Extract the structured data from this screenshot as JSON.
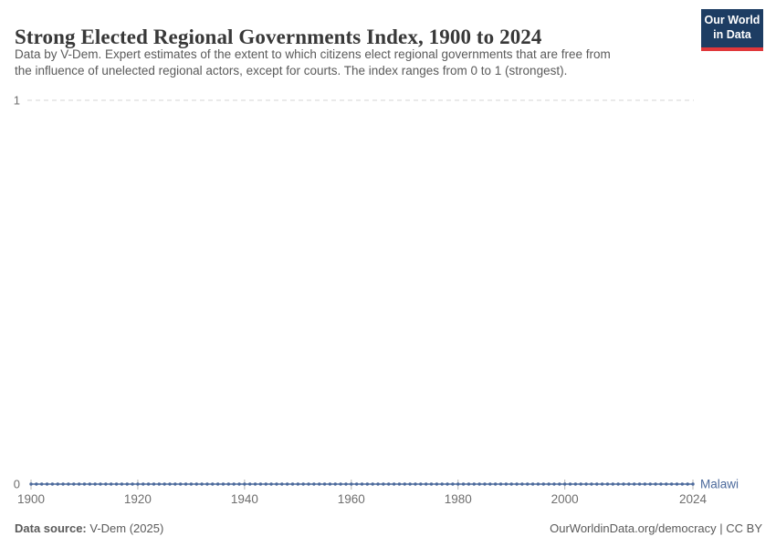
{
  "header": {
    "title": "Strong Elected Regional Governments Index, 1900 to 2024",
    "subtitle_lines": [
      "Data by V-Dem. Expert estimates of the extent to which citizens elect regional governments that are free from",
      "the influence of unelected regional actors, except for courts. The index ranges from 0 to 1 (strongest)."
    ],
    "logo": {
      "line1": "Our World",
      "line2": "in Data",
      "bg_color": "#1d3d63",
      "accent_color": "#e0373a"
    }
  },
  "chart_data": {
    "type": "line",
    "title": "Strong Elected Regional Governments Index, 1900 to 2024",
    "xlabel": "",
    "ylabel": "",
    "xlim": [
      1900,
      2024
    ],
    "ylim": [
      0,
      1
    ],
    "x_ticks": [
      1900,
      1920,
      1940,
      1960,
      1980,
      2000,
      2024
    ],
    "y_ticks": [
      {
        "value": 0,
        "label": "0",
        "gridline": false
      },
      {
        "value": 1,
        "label": "1",
        "gridline": true
      }
    ],
    "grid": "dashed horizontal gridline at y=1 only",
    "legend_position": "label at right end of line",
    "series": [
      {
        "name": "Malawi",
        "color": "#4C6A9C",
        "x_start": 1900,
        "x_end": 2024,
        "x_step": 1,
        "constant_value": 0,
        "note": "Index value is 0 for every year from 1900 to 2024; markers drawn at each yearly point"
      }
    ],
    "axis_text_color": "#6e6e6e",
    "gridline_color": "#d6d6d6",
    "tick_mark_color": "#b5b5b5"
  },
  "footer": {
    "source_label": "Data source:",
    "source_value": " V-Dem (2025)",
    "right_text": "OurWorldinData.org/democracy | CC BY"
  }
}
